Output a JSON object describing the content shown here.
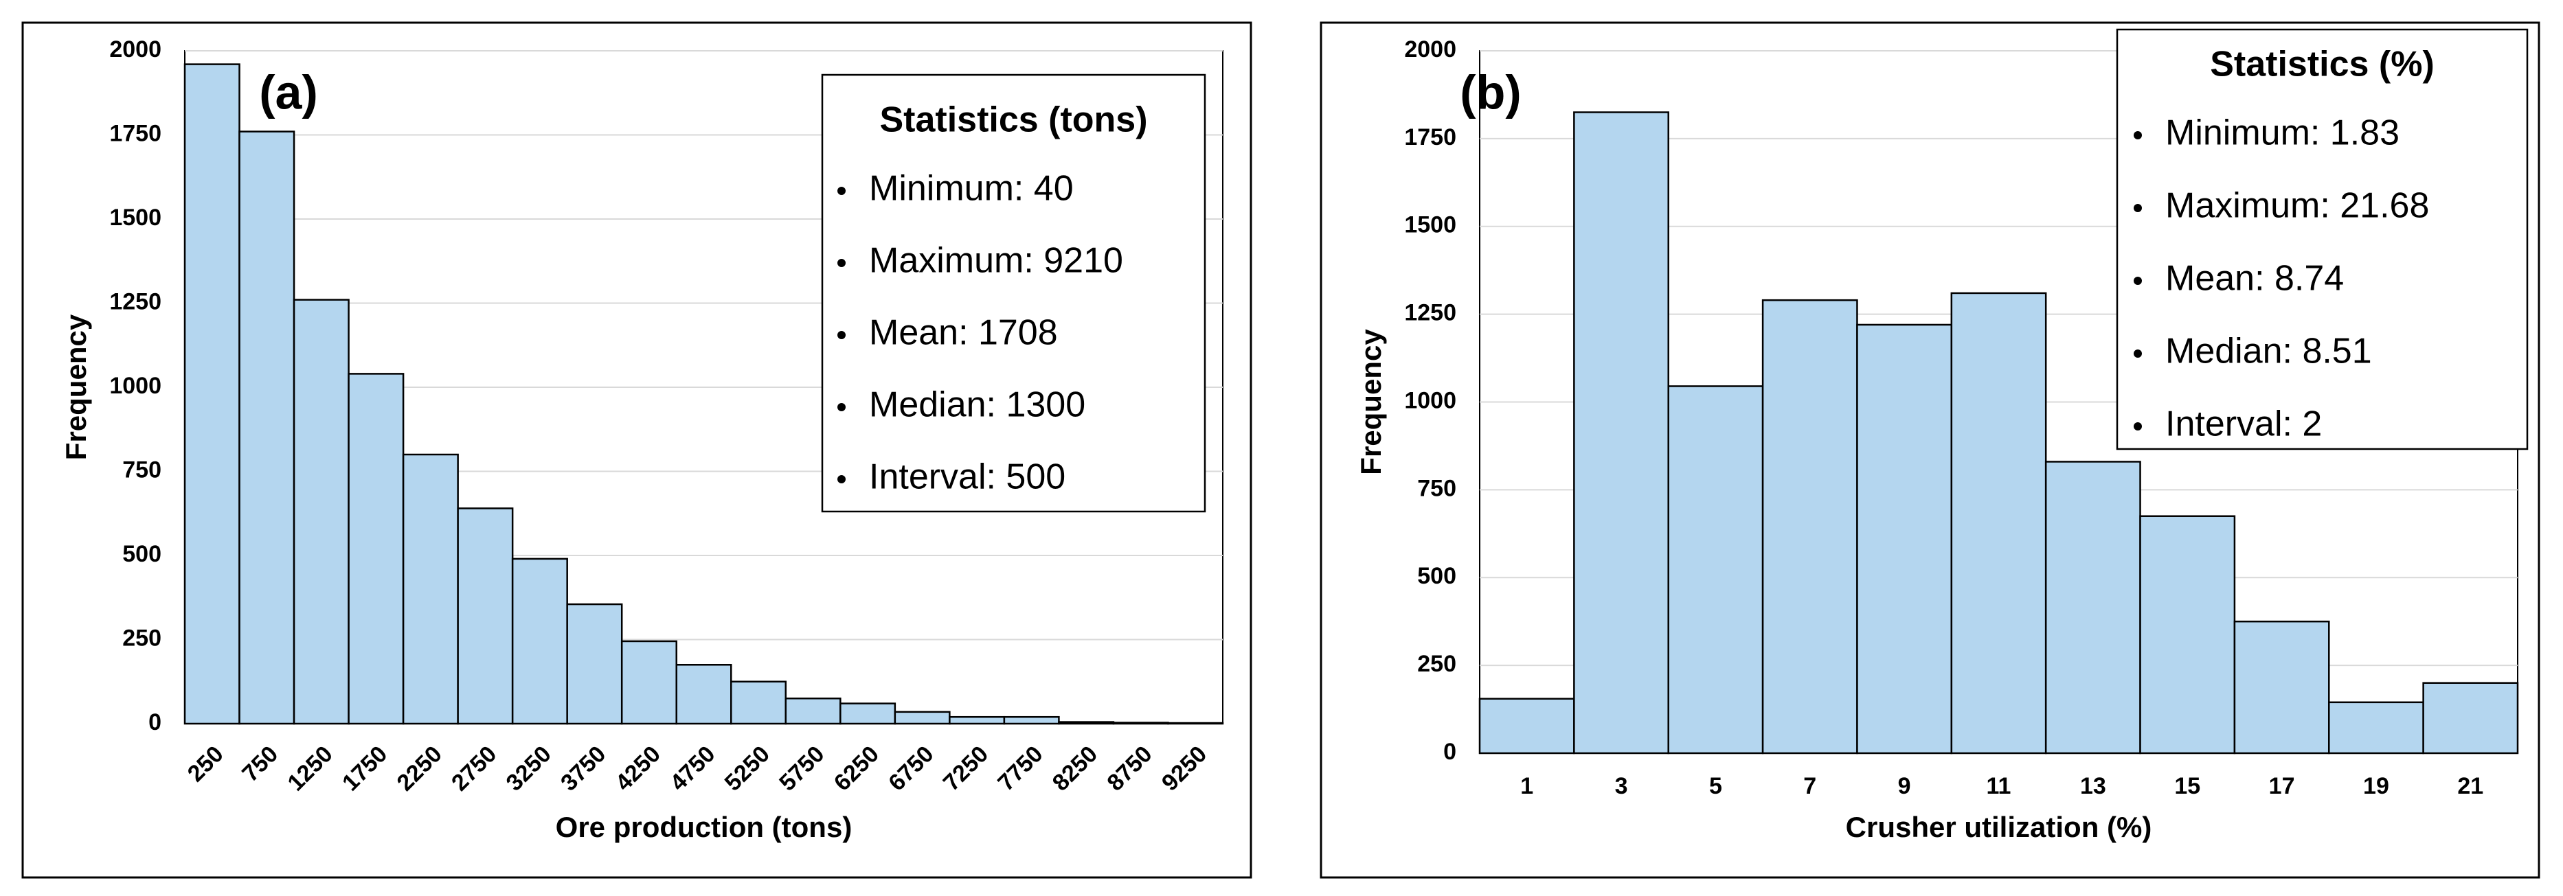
{
  "chart_data": [
    {
      "type": "bar",
      "panel_label": "(a)",
      "xlabel": "Ore production (tons)",
      "ylabel": "Frequency",
      "categories": [
        250,
        750,
        1250,
        1750,
        2250,
        2750,
        3250,
        3750,
        4250,
        4750,
        5250,
        5750,
        6250,
        6750,
        7250,
        7750,
        8250,
        8750,
        9250
      ],
      "values": [
        1960,
        1760,
        1260,
        1040,
        800,
        640,
        490,
        355,
        245,
        175,
        125,
        75,
        60,
        35,
        20,
        20,
        5,
        3,
        2
      ],
      "color": "#b4d6ef",
      "ylim": [
        0,
        2000
      ],
      "yticks": [
        0,
        250,
        500,
        750,
        1000,
        1250,
        1500,
        1750,
        2000
      ],
      "grid": true,
      "stats": {
        "title": "Statistics (tons)",
        "items": [
          "Minimum: 40",
          "Maximum: 9210",
          "Mean: 1708",
          "Median: 1300",
          "Interval: 500"
        ]
      }
    },
    {
      "type": "bar",
      "panel_label": "(b)",
      "xlabel": "Crusher utilization (%)",
      "ylabel": "Frequency",
      "categories": [
        1,
        3,
        5,
        7,
        9,
        11,
        13,
        15,
        17,
        19,
        21
      ],
      "values": [
        155,
        1825,
        1045,
        1290,
        1220,
        1310,
        830,
        675,
        375,
        145,
        200
      ],
      "color": "#b4d6ef",
      "ylim": [
        0,
        2000
      ],
      "yticks": [
        0,
        250,
        500,
        750,
        1000,
        1250,
        1500,
        1750,
        2000
      ],
      "grid": true,
      "stats": {
        "title": "Statistics (%)",
        "items": [
          "Minimum: 1.83",
          "Maximum: 21.68",
          "Mean: 8.74",
          "Median: 8.51",
          "Interval: 2"
        ]
      }
    }
  ]
}
